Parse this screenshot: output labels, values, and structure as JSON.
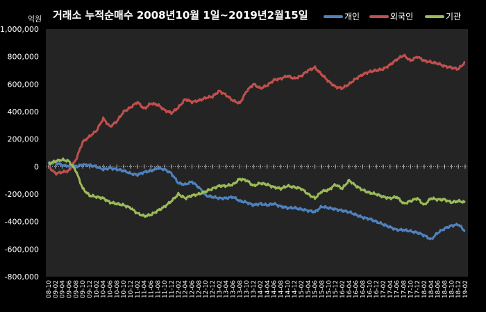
{
  "chart_data": {
    "type": "line",
    "title": "거래소 누적순매수 2008년10월 1일~2019년2월15일",
    "unit_label": "억원",
    "ylim": [
      -800000,
      1000000
    ],
    "y_ticks": [
      1000000,
      800000,
      600000,
      400000,
      200000,
      0,
      -200000,
      -400000,
      -600000,
      -800000
    ],
    "y_tick_labels": [
      "1,000,000",
      "800,000",
      "600,000",
      "400,000",
      "200,000",
      "0",
      "-200,000",
      "-400,000",
      "-600,000",
      "-800,000"
    ],
    "x_tick_labels": [
      "08-10",
      "09-02",
      "09-04",
      "09-06",
      "09-08",
      "09-10",
      "09-12",
      "10-02",
      "10-04",
      "10-06",
      "10-08",
      "10-10",
      "10-12",
      "11-02",
      "11-04",
      "11-06",
      "11-08",
      "11-10",
      "11-12",
      "12-02",
      "12-04",
      "12-06",
      "12-08",
      "12-10",
      "12-12",
      "13-02",
      "13-04",
      "13-06",
      "13-08",
      "13-10",
      "13-12",
      "14-02",
      "14-04",
      "14-06",
      "14-08",
      "14-10",
      "14-12",
      "15-02",
      "15-04",
      "15-06",
      "15-08",
      "15-10",
      "15-12",
      "16-02",
      "16-04",
      "16-06",
      "16-08",
      "16-10",
      "16-12",
      "17-02",
      "17-04",
      "17-06",
      "17-08",
      "17-10",
      "17-12",
      "18-02",
      "18-04",
      "18-06",
      "18-08",
      "18-10",
      "18-12",
      "19-02"
    ],
    "grid": false,
    "legend_position": "top-right",
    "zero_line_style": "dotted",
    "series": [
      {
        "name": "개인",
        "color": "#4f81bd",
        "values": [
          25000,
          30000,
          10000,
          5000,
          0,
          15000,
          10000,
          0,
          -20000,
          -10000,
          -20000,
          -30000,
          -50000,
          -60000,
          -40000,
          -30000,
          -10000,
          -20000,
          -50000,
          -120000,
          -130000,
          -110000,
          -150000,
          -210000,
          -220000,
          -230000,
          -230000,
          -220000,
          -250000,
          -260000,
          -280000,
          -270000,
          -280000,
          -270000,
          -290000,
          -300000,
          -300000,
          -310000,
          -320000,
          -330000,
          -290000,
          -300000,
          -310000,
          -320000,
          -330000,
          -350000,
          -370000,
          -380000,
          -400000,
          -420000,
          -440000,
          -460000,
          -460000,
          -470000,
          -480000,
          -500000,
          -530000,
          -480000,
          -450000,
          -430000,
          -420000,
          -470000
        ]
      },
      {
        "name": "외국인",
        "color": "#c0504d",
        "values": [
          0,
          -50000,
          -40000,
          -30000,
          50000,
          180000,
          220000,
          260000,
          350000,
          290000,
          330000,
          400000,
          430000,
          470000,
          420000,
          460000,
          450000,
          410000,
          390000,
          430000,
          490000,
          470000,
          480000,
          500000,
          510000,
          550000,
          520000,
          480000,
          460000,
          550000,
          600000,
          570000,
          590000,
          630000,
          640000,
          660000,
          640000,
          660000,
          700000,
          720000,
          670000,
          620000,
          580000,
          570000,
          600000,
          640000,
          670000,
          690000,
          700000,
          710000,
          740000,
          780000,
          810000,
          770000,
          800000,
          770000,
          760000,
          750000,
          730000,
          720000,
          710000,
          760000
        ]
      },
      {
        "name": "기관",
        "color": "#9bbb59",
        "values": [
          20000,
          40000,
          50000,
          40000,
          -30000,
          -160000,
          -210000,
          -220000,
          -230000,
          -260000,
          -270000,
          -280000,
          -300000,
          -340000,
          -360000,
          -350000,
          -320000,
          -290000,
          -250000,
          -200000,
          -230000,
          -210000,
          -200000,
          -180000,
          -160000,
          -140000,
          -140000,
          -130000,
          -90000,
          -100000,
          -140000,
          -120000,
          -130000,
          -150000,
          -160000,
          -140000,
          -150000,
          -160000,
          -200000,
          -230000,
          -180000,
          -170000,
          -130000,
          -160000,
          -100000,
          -140000,
          -170000,
          -190000,
          -200000,
          -220000,
          -230000,
          -220000,
          -270000,
          -250000,
          -230000,
          -280000,
          -230000,
          -240000,
          -240000,
          -260000,
          -250000,
          -260000
        ]
      }
    ]
  }
}
